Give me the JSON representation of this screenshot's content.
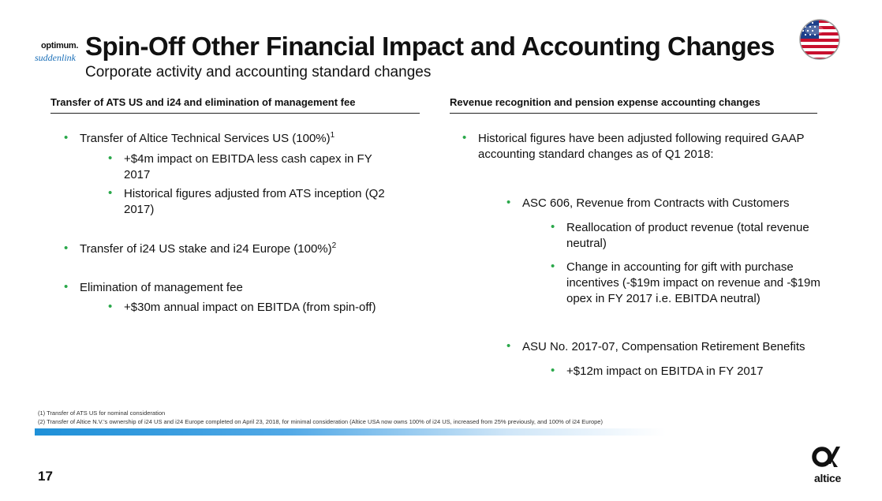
{
  "brand": {
    "optimum": "optimum.",
    "suddenlink": "suddenlink",
    "altice": "altice"
  },
  "header": {
    "title": "Spin-Off Other Financial Impact and Accounting Changes",
    "subtitle": "Corporate activity and accounting standard changes"
  },
  "left": {
    "heading": "Transfer of ATS US and i24 and elimination of management fee",
    "b1": "Transfer of Altice Technical Services US (100%)",
    "b1_sup": "1",
    "b1_s1": "+$4m impact on EBITDA less cash capex in FY 2017",
    "b1_s2": "Historical figures adjusted from ATS inception (Q2 2017)",
    "b2": "Transfer of i24 US stake and i24 Europe (100%)",
    "b2_sup": "2",
    "b3": "Elimination of management fee",
    "b3_s1": "+$30m annual impact on EBITDA (from spin-off)"
  },
  "right": {
    "heading": "Revenue recognition and pension expense accounting changes",
    "b1": "Historical figures have been adjusted following required GAAP accounting standard changes as of Q1 2018:",
    "asc": "ASC 606, Revenue from Contracts with Customers",
    "asc_s1": "Reallocation of product revenue (total revenue neutral)",
    "asc_s2": "Change in accounting for gift with purchase incentives (-$19m impact on revenue and -$19m opex in FY 2017 i.e. EBITDA neutral)",
    "asu": "ASU No. 2017-07, Compensation Retirement Benefits",
    "asu_s1": "+$12m impact on EBITDA in FY 2017"
  },
  "footnotes": {
    "f1": "(1) Transfer of ATS US for nominal consideration",
    "f2": "(2) Transfer of Altice N.V.'s ownership of i24 US and i24 Europe completed on April 23, 2018, for minimal consideration (Altice USA now owns 100% of i24 US, increased from 25% previously, and 100% of i24 Europe)"
  },
  "page_number": "17",
  "colors": {
    "bullet": "#2aa84a",
    "accent_blue": "#1e90d8"
  },
  "icons": {
    "flag": "us-flag-icon",
    "logo": "altice-logo-icon"
  }
}
